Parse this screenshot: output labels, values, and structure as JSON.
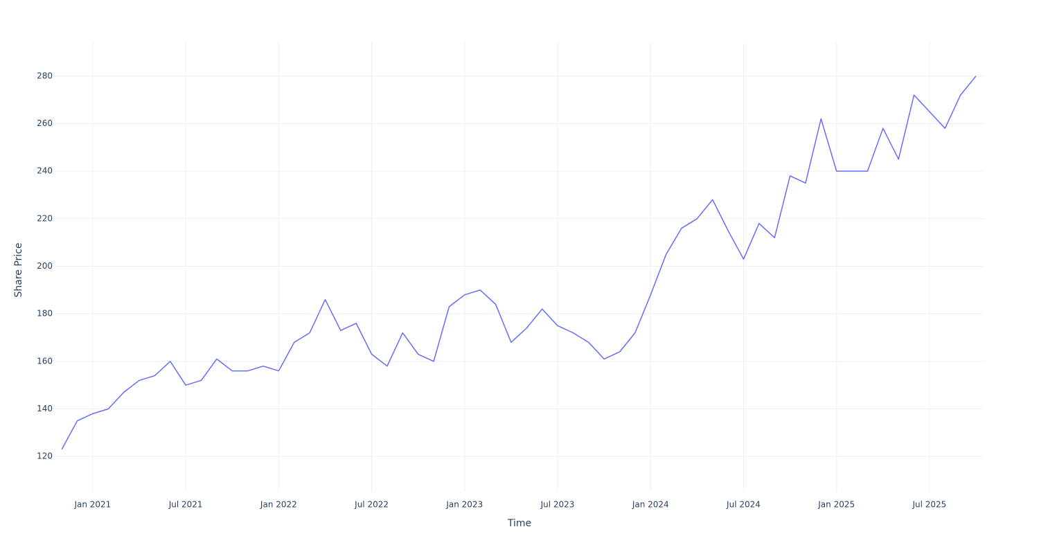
{
  "chart_data": {
    "type": "line",
    "xlabel": "Time",
    "ylabel": "Share Price",
    "color": "#636efa",
    "grid": true,
    "x": [
      "2020-11",
      "2020-12",
      "2021-01",
      "2021-02",
      "2021-03",
      "2021-04",
      "2021-05",
      "2021-06",
      "2021-07",
      "2021-08",
      "2021-09",
      "2021-10",
      "2021-11",
      "2021-12",
      "2022-01",
      "2022-02",
      "2022-03",
      "2022-04",
      "2022-05",
      "2022-06",
      "2022-07",
      "2022-08",
      "2022-09",
      "2022-10",
      "2022-11",
      "2022-12",
      "2023-01",
      "2023-02",
      "2023-03",
      "2023-04",
      "2023-05",
      "2023-06",
      "2023-07",
      "2023-08",
      "2023-09",
      "2023-10",
      "2023-11",
      "2023-12",
      "2024-01",
      "2024-02",
      "2024-03",
      "2024-04",
      "2024-05",
      "2024-06",
      "2024-07",
      "2024-08",
      "2024-09",
      "2024-10",
      "2024-11",
      "2024-12",
      "2025-01",
      "2025-02",
      "2025-03",
      "2025-04",
      "2025-05",
      "2025-06",
      "2025-07",
      "2025-08",
      "2025-09",
      "2025-10"
    ],
    "values": [
      123,
      135,
      138,
      140,
      147,
      152,
      154,
      160,
      150,
      152,
      161,
      156,
      156,
      158,
      156,
      168,
      172,
      186,
      173,
      176,
      163,
      158,
      172,
      163,
      160,
      183,
      188,
      190,
      184,
      168,
      174,
      182,
      175,
      172,
      168,
      161,
      164,
      172,
      188,
      205,
      216,
      220,
      228,
      215,
      203,
      218,
      212,
      238,
      235,
      262,
      240,
      240,
      240,
      258,
      245,
      272,
      265,
      258,
      272,
      280
    ],
    "xlim": [
      "2020-10",
      "2025-11"
    ],
    "xticks": [
      {
        "value": "2021-01",
        "label": "Jan 2021"
      },
      {
        "value": "2021-07",
        "label": "Jul 2021"
      },
      {
        "value": "2022-01",
        "label": "Jan 2022"
      },
      {
        "value": "2022-07",
        "label": "Jul 2022"
      },
      {
        "value": "2023-01",
        "label": "Jan 2023"
      },
      {
        "value": "2023-07",
        "label": "Jul 2023"
      },
      {
        "value": "2024-01",
        "label": "Jan 2024"
      },
      {
        "value": "2024-07",
        "label": "Jul 2024"
      },
      {
        "value": "2025-01",
        "label": "Jan 2025"
      },
      {
        "value": "2025-07",
        "label": "Jul 2025"
      }
    ],
    "ylim": [
      105.2,
      294.5
    ],
    "yticks": [
      120,
      140,
      160,
      180,
      200,
      220,
      240,
      260,
      280
    ]
  }
}
